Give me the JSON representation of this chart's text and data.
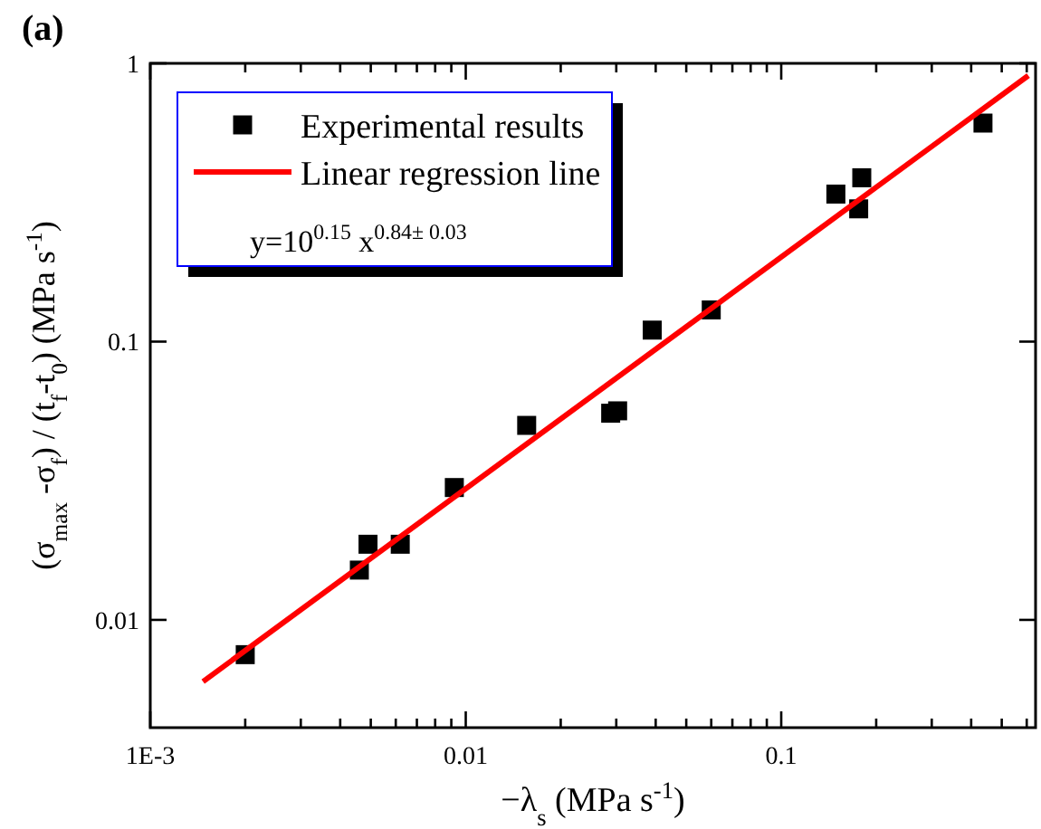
{
  "chart_data": {
    "type": "scatter",
    "title": "(a)",
    "xlabel": "−λ$_{s}$  (MPa s$^{-1}$)",
    "ylabel": "(σ$_{max}$ -σ$_{f}$) / (t$_{f}$-t$_{0}$)   (MPa s$^{-1}$)",
    "annotations": [
      "y=10$^{0.15}$ x$^{0.84± 0.03}$"
    ],
    "series": [
      {
        "name": "Experimental results",
        "color": "#000000",
        "marker": "square",
        "x": [
          0.002,
          0.0046,
          0.0049,
          0.0062,
          0.0092,
          0.0156,
          0.0288,
          0.0303,
          0.039,
          0.06,
          0.149,
          0.176,
          0.18,
          0.436
        ],
        "values": [
          0.0075,
          0.0151,
          0.0187,
          0.0187,
          0.0299,
          0.05,
          0.0553,
          0.0564,
          0.11,
          0.13,
          0.339,
          0.3,
          0.388,
          0.61
        ]
      },
      {
        "name": "Linear regression line",
        "type": "line",
        "color": "#ff0000",
        "line_style": "solid",
        "x": [
          0.00147,
          0.607
        ],
        "values": [
          0.006,
          0.904
        ]
      }
    ],
    "log": "xy",
    "grid": false,
    "legend": "top left",
    "xlim": [
      0.001,
      0.64
    ],
    "ylim": [
      0.0041,
      1
    ],
    "xticks": [
      {
        "value": 0.001,
        "label": "1E-3"
      },
      {
        "value": 0.002,
        "label": null
      },
      {
        "value": 0.003,
        "label": null
      },
      {
        "value": 0.004,
        "label": null
      },
      {
        "value": 0.005,
        "label": null
      },
      {
        "value": 0.006,
        "label": null
      },
      {
        "value": 0.007,
        "label": null
      },
      {
        "value": 0.008,
        "label": null
      },
      {
        "value": 0.009,
        "label": null
      },
      0.01,
      {
        "value": 0.02,
        "label": null
      },
      {
        "value": 0.03,
        "label": null
      },
      {
        "value": 0.04,
        "label": null
      },
      {
        "value": 0.05,
        "label": null
      },
      {
        "value": 0.06,
        "label": null
      },
      {
        "value": 0.07,
        "label": null
      },
      {
        "value": 0.08,
        "label": null
      },
      {
        "value": 0.09,
        "label": null
      },
      0.1,
      {
        "value": 0.2,
        "label": null
      },
      {
        "value": 0.3,
        "label": null
      },
      {
        "value": 0.4,
        "label": null
      },
      {
        "value": 0.5,
        "label": null
      },
      {
        "value": 0.6,
        "label": null
      }
    ],
    "yticks": [
      0.01,
      0.1,
      1
    ]
  }
}
